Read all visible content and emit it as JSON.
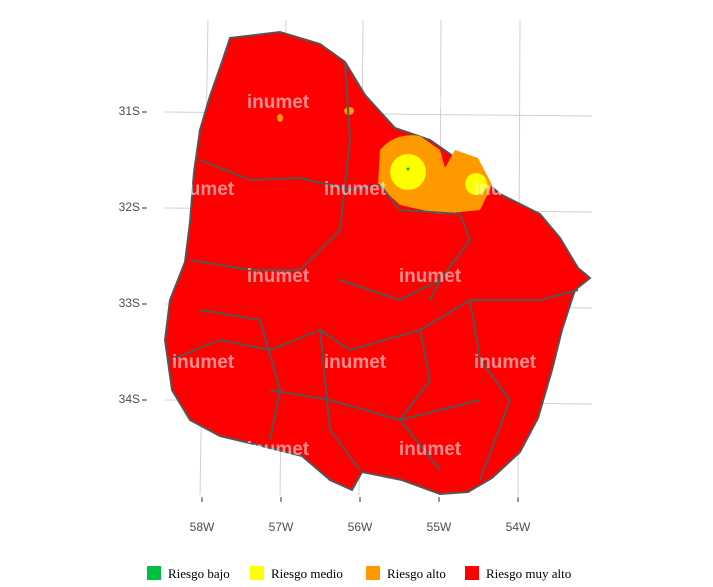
{
  "map": {
    "watermark": "inumet",
    "xticks": [
      "58W",
      "57W",
      "56W",
      "55W",
      "54W"
    ],
    "yticks": [
      "31S",
      "32S",
      "33S",
      "34S"
    ],
    "legend": [
      {
        "label": "Riesgo bajo",
        "color": "#00c040"
      },
      {
        "label": "Riesgo medio",
        "color": "#ffff00"
      },
      {
        "label": "Riesgo alto",
        "color": "#ff9900"
      },
      {
        "label": "Riesgo muy alto",
        "color": "#ff0000"
      }
    ]
  }
}
